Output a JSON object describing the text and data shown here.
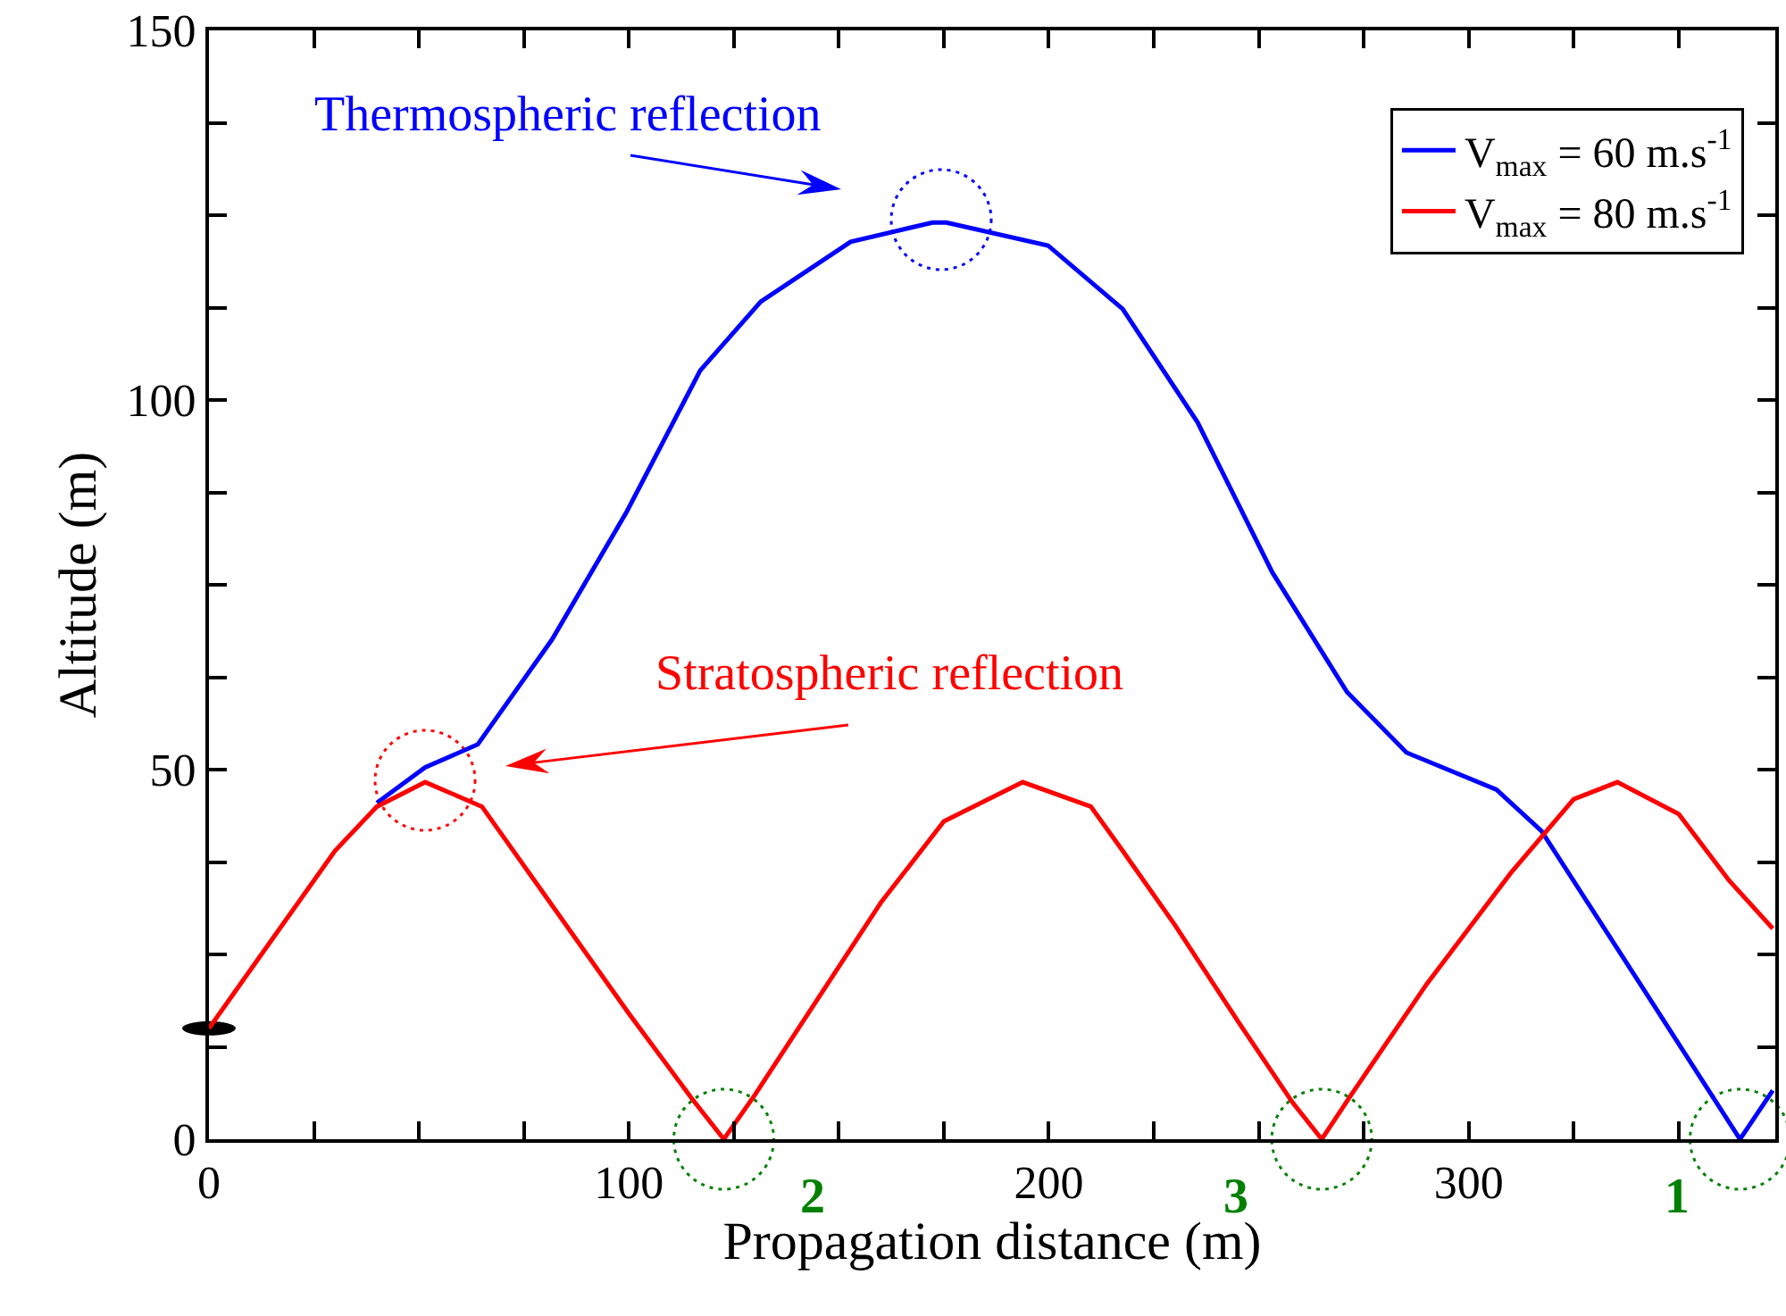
{
  "chart_data": {
    "type": "line",
    "xlabel": "Propagation distance (m)",
    "ylabel": "Altitude (m)",
    "xlim": [
      0,
      373
    ],
    "ylim": [
      0,
      150
    ],
    "xticks": [
      0,
      {
        "value": 25,
        "label": null
      },
      {
        "value": 50,
        "label": null
      },
      {
        "value": 75,
        "label": null
      },
      100,
      {
        "value": 125,
        "label": null
      },
      {
        "value": 150,
        "label": null
      },
      {
        "value": 175,
        "label": null
      },
      200,
      {
        "value": 225,
        "label": null
      },
      {
        "value": 250,
        "label": null
      },
      {
        "value": 275,
        "label": null
      },
      300,
      {
        "value": 325,
        "label": null
      },
      {
        "value": 350,
        "label": null
      }
    ],
    "yticks": [
      0,
      {
        "value": 12.5,
        "label": null
      },
      {
        "value": 25,
        "label": null
      },
      {
        "value": 37.5,
        "label": null
      },
      50,
      {
        "value": 62.5,
        "label": null
      },
      {
        "value": 75,
        "label": null
      },
      {
        "value": 87.5,
        "label": null
      },
      100,
      {
        "value": 112.5,
        "label": null
      },
      {
        "value": 125,
        "label": null
      },
      {
        "value": 137.5,
        "label": null
      },
      150
    ],
    "grid": false,
    "legend": "top right",
    "marker": "none",
    "line_style": "solid",
    "series": [
      {
        "name": "V$_{max}$ = 60 m.s$^{-1}$",
        "color": "#0000ff",
        "x": [
          40,
          46,
          51.5,
          64,
          81.7,
          99.5,
          117,
          131.4,
          152.8,
          172.3,
          175.6,
          199.8,
          217.6,
          235.4,
          253.2,
          271,
          285.2,
          306.6,
          317.3,
          342.2,
          364.6,
          372.4
        ],
        "values": [
          45.5,
          48,
          50.3,
          53.4,
          67.6,
          84.9,
          104,
          113.3,
          121.4,
          124,
          124,
          120.9,
          112.3,
          97,
          76.7,
          60.5,
          52.3,
          47.3,
          41.7,
          19.8,
          0,
          6.6
        ]
      },
      {
        "name": "V$_{max}$ = 80 m.s$^{-1}$",
        "color": "#ff0000",
        "x": [
          0,
          10,
          20,
          30,
          40,
          51.5,
          65,
          80,
          100,
          115,
          122.6,
          130,
          145,
          160,
          175,
          193.8,
          210,
          217.6,
          230,
          245,
          258,
          265,
          272,
          290,
          310,
          325,
          335.4,
          350,
          362,
          372.4
        ],
        "values": [
          15,
          23,
          31,
          39,
          45,
          48.3,
          45,
          33,
          17,
          5.5,
          0,
          6,
          19,
          32,
          43,
          48.3,
          45,
          39,
          29,
          16,
          5,
          0,
          6,
          21,
          36,
          46,
          48.3,
          44,
          35,
          28.5
        ]
      }
    ],
    "annotations": [
      "Thermospheric reflection",
      "Stratospheric reflection",
      {
        "text": "2",
        "x": 122.6,
        "y": 0
      },
      {
        "text": "3",
        "x": 265,
        "y": 0
      },
      {
        "text": "1",
        "x": 364.6,
        "y": 0
      }
    ]
  }
}
